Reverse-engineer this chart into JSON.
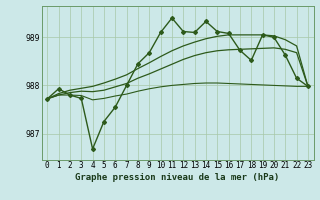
{
  "xlabel": "Graphe pression niveau de la mer (hPa)",
  "x": [
    0,
    1,
    2,
    3,
    4,
    5,
    6,
    7,
    8,
    9,
    10,
    11,
    12,
    13,
    14,
    15,
    16,
    17,
    18,
    19,
    20,
    21,
    22,
    23
  ],
  "series": [
    {
      "name": "marked_line",
      "y": [
        987.72,
        987.93,
        987.8,
        987.73,
        986.68,
        987.25,
        987.55,
        988.0,
        988.45,
        988.68,
        989.1,
        989.4,
        989.12,
        989.1,
        989.33,
        989.12,
        989.08,
        988.73,
        988.52,
        989.05,
        989.0,
        988.63,
        988.15,
        987.98
      ],
      "color": "#2d5a1b",
      "marker": "D",
      "markersize": 2.0,
      "linewidth": 1.0,
      "zorder": 5
    },
    {
      "name": "trend_upper",
      "y": [
        987.72,
        987.83,
        987.9,
        987.94,
        987.98,
        988.05,
        988.13,
        988.22,
        988.35,
        988.47,
        988.6,
        988.72,
        988.82,
        988.9,
        988.97,
        989.02,
        989.05,
        989.05,
        989.05,
        989.05,
        989.03,
        988.95,
        988.82,
        987.98
      ],
      "color": "#2d5a1b",
      "marker": null,
      "markersize": 0,
      "linewidth": 0.9,
      "zorder": 3
    },
    {
      "name": "trend_mid",
      "y": [
        987.72,
        987.8,
        987.85,
        987.88,
        987.87,
        987.9,
        987.97,
        988.04,
        988.15,
        988.24,
        988.34,
        988.44,
        988.54,
        988.62,
        988.68,
        988.72,
        988.74,
        988.75,
        988.76,
        988.77,
        988.78,
        988.75,
        988.68,
        987.98
      ],
      "color": "#2d5a1b",
      "marker": null,
      "markersize": 0,
      "linewidth": 0.9,
      "zorder": 3
    },
    {
      "name": "flat_bottom",
      "y": [
        987.72,
        987.8,
        987.8,
        987.79,
        987.7,
        987.73,
        987.78,
        987.82,
        987.88,
        987.93,
        987.97,
        988.0,
        988.02,
        988.04,
        988.05,
        988.05,
        988.04,
        988.03,
        988.02,
        988.01,
        988.0,
        987.99,
        987.98,
        987.98
      ],
      "color": "#2d5a1b",
      "marker": null,
      "markersize": 0,
      "linewidth": 0.8,
      "zorder": 2
    }
  ],
  "ylim": [
    986.45,
    989.65
  ],
  "xlim": [
    -0.5,
    23.5
  ],
  "yticks": [
    987,
    988,
    989
  ],
  "xticks": [
    0,
    1,
    2,
    3,
    4,
    5,
    6,
    7,
    8,
    9,
    10,
    11,
    12,
    13,
    14,
    15,
    16,
    17,
    18,
    19,
    20,
    21,
    22,
    23
  ],
  "xtick_labels": [
    "0",
    "1",
    "2",
    "3",
    "4",
    "5",
    "6",
    "7",
    "8",
    "9",
    "10",
    "11",
    "12",
    "13",
    "14",
    "15",
    "16",
    "17",
    "18",
    "19",
    "20",
    "21",
    "22",
    "23"
  ],
  "grid_color": "#a8c8a8",
  "bg_color": "#cce8e8",
  "spine_color": "#6a9a6a",
  "text_color": "#1a3a1a",
  "xlabel_fontsize": 6.5,
  "tick_fontsize": 5.5
}
